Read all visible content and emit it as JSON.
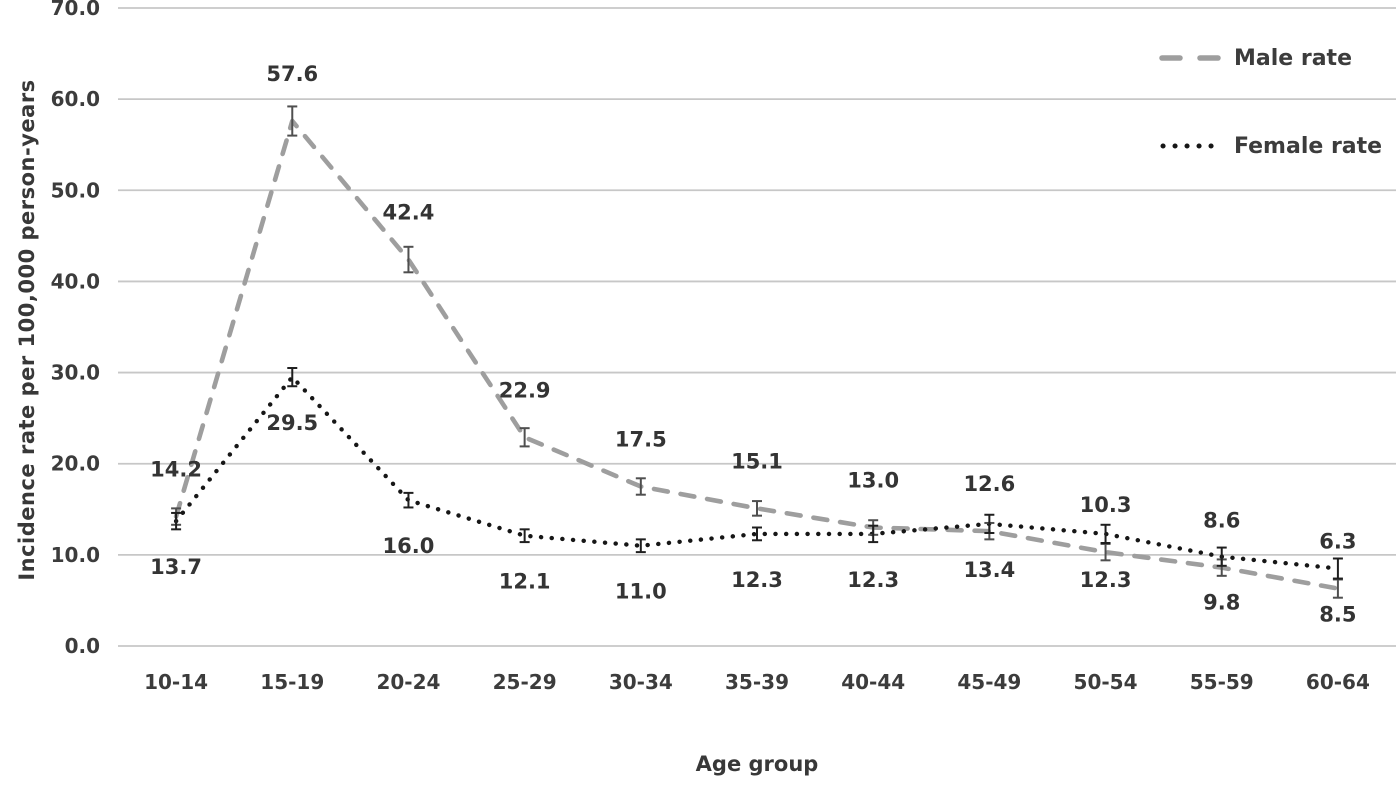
{
  "figure": {
    "xlabel": "Age group",
    "ylabel": "Incidence rate per 100,000 person-years",
    "background_color": "#ffffff",
    "gridline_color": "#c7c7c7",
    "text_color": "#3c3c3c"
  },
  "chart_data": {
    "type": "line",
    "title": "",
    "xlabel": "Age group",
    "ylabel": "Incidence rate per 100,000 person-years",
    "categories": [
      "10-14",
      "15-19",
      "20-24",
      "25-29",
      "30-34",
      "35-39",
      "40-44",
      "45-49",
      "50-54",
      "55-59",
      "60-64"
    ],
    "series": [
      {
        "name": "Male rate",
        "style": "dashed",
        "color": "#9e9e9e",
        "error_color": "#4f4f4f",
        "labels_position": "above",
        "values": [
          14.2,
          57.6,
          42.4,
          22.9,
          17.5,
          15.1,
          13.0,
          12.6,
          10.3,
          8.6,
          6.3
        ],
        "error": [
          0.9,
          1.6,
          1.4,
          1.0,
          0.9,
          0.8,
          0.8,
          0.9,
          0.9,
          0.9,
          1.0
        ]
      },
      {
        "name": "Female rate",
        "style": "dotted",
        "color": "#161616",
        "error_color": "#1f1f1f",
        "labels_position": "below",
        "values": [
          13.7,
          29.5,
          16.0,
          12.1,
          11.0,
          12.3,
          12.3,
          13.4,
          12.3,
          9.8,
          8.5
        ],
        "error": [
          0.9,
          1.0,
          0.8,
          0.7,
          0.7,
          0.7,
          0.9,
          1.0,
          1.0,
          1.0,
          1.1
        ]
      }
    ],
    "ylim": [
      0,
      70
    ],
    "y_ticks": [
      "0.0",
      "10.0",
      "20.0",
      "30.0",
      "40.0",
      "50.0",
      "60.0",
      "70.0"
    ],
    "grid": true,
    "legend_position": "top-right",
    "data_labels_format": "one-decimal"
  }
}
